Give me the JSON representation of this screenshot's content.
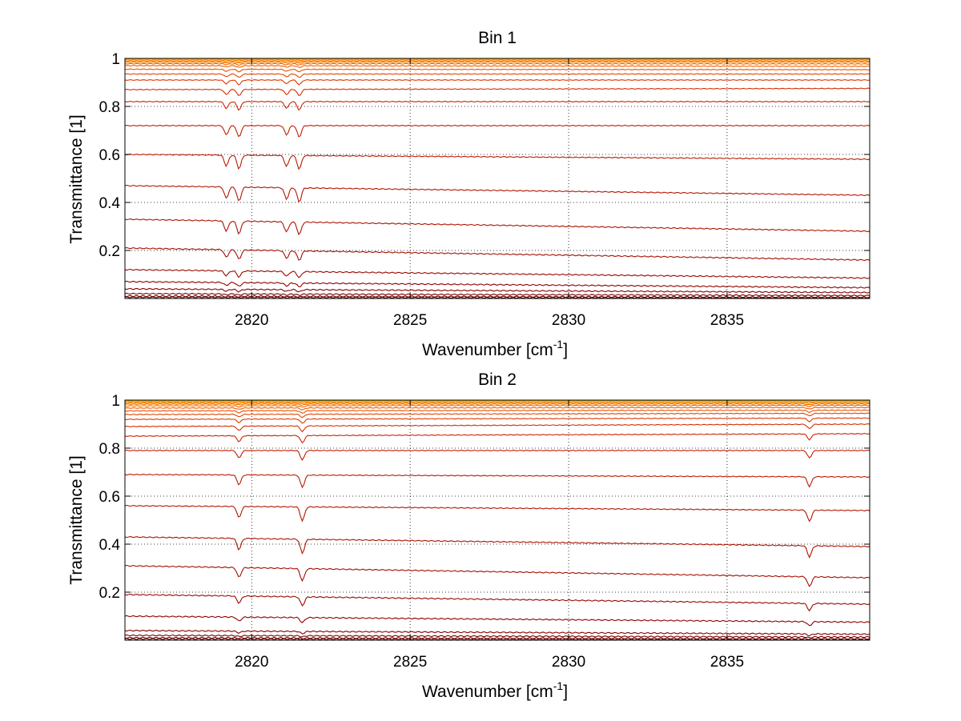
{
  "chart_data": [
    {
      "type": "line",
      "title": "Bin 1",
      "xlabel": "Wavenumber [cm",
      "xlabel_sup": "-1",
      "xlabel_end": "]",
      "ylabel": "Transmittance [1]",
      "xlim": [
        2816,
        2839.5
      ],
      "ylim": [
        0,
        1
      ],
      "x_ticks": [
        2820,
        2825,
        2830,
        2835
      ],
      "y_ticks": [
        0.2,
        0.4,
        0.6,
        0.8,
        1
      ],
      "x_tick_labels": [
        "2820",
        "2825",
        "2830",
        "2835"
      ],
      "y_tick_labels": [
        "0.2",
        "0.4",
        "0.6",
        "0.8",
        "1"
      ],
      "grid": true,
      "absorption_lines_x": [
        2819.2,
        2819.6,
        2821.1,
        2821.5
      ],
      "series_baseline_start": [
        0.005,
        0.01,
        0.02,
        0.04,
        0.07,
        0.12,
        0.21,
        0.33,
        0.47,
        0.6,
        0.72,
        0.82,
        0.87,
        0.91,
        0.935,
        0.955,
        0.97,
        0.978,
        0.984,
        0.989,
        0.993,
        0.996,
        0.998,
        1.0
      ],
      "series_baseline_end": [
        0.002,
        0.005,
        0.012,
        0.025,
        0.045,
        0.085,
        0.16,
        0.28,
        0.43,
        0.58,
        0.72,
        0.82,
        0.875,
        0.91,
        0.935,
        0.953,
        0.967,
        0.977,
        0.984,
        0.989,
        0.993,
        0.996,
        0.998,
        1.0
      ],
      "series_colors": [
        "#5a0000",
        "#6b0000",
        "#7a0000",
        "#850000",
        "#900000",
        "#9a0800",
        "#a40e00",
        "#ac1200",
        "#b41600",
        "#bc1a00",
        "#c41e00",
        "#cc2400",
        "#d42e00",
        "#dc3800",
        "#e24400",
        "#e85000",
        "#ec5c00",
        "#f06800",
        "#f47400",
        "#f78000",
        "#fa8c00",
        "#fc9800",
        "#fea400",
        "#ffb000"
      ]
    },
    {
      "type": "line",
      "title": "Bin 2",
      "xlabel": "Wavenumber [cm",
      "xlabel_sup": "-1",
      "xlabel_end": "]",
      "ylabel": "Transmittance [1]",
      "xlim": [
        2816,
        2839.5
      ],
      "ylim": [
        0,
        1
      ],
      "x_ticks": [
        2820,
        2825,
        2830,
        2835
      ],
      "y_ticks": [
        0.2,
        0.4,
        0.6,
        0.8,
        1
      ],
      "x_tick_labels": [
        "2820",
        "2825",
        "2830",
        "2835"
      ],
      "y_tick_labels": [
        "0.2",
        "0.4",
        "0.6",
        "0.8",
        "1"
      ],
      "grid": true,
      "absorption_lines_x": [
        2819.6,
        2821.6,
        2837.6
      ],
      "series_baseline_start": [
        0.005,
        0.01,
        0.02,
        0.04,
        0.1,
        0.19,
        0.31,
        0.43,
        0.56,
        0.69,
        0.79,
        0.85,
        0.89,
        0.92,
        0.94,
        0.955,
        0.967,
        0.976,
        0.983,
        0.988,
        0.992,
        0.995,
        0.997,
        0.999,
        1.0
      ],
      "series_baseline_end": [
        0.002,
        0.006,
        0.013,
        0.025,
        0.075,
        0.15,
        0.26,
        0.39,
        0.54,
        0.68,
        0.79,
        0.86,
        0.9,
        0.925,
        0.945,
        0.958,
        0.969,
        0.978,
        0.984,
        0.989,
        0.993,
        0.996,
        0.998,
        0.999,
        1.0
      ],
      "series_colors": [
        "#5a0000",
        "#6b0000",
        "#7a0000",
        "#850000",
        "#900000",
        "#9a0800",
        "#a40e00",
        "#ac1200",
        "#b41600",
        "#bc1a00",
        "#c41e00",
        "#cc2400",
        "#d42e00",
        "#dc3800",
        "#e24400",
        "#e85000",
        "#ec5c00",
        "#f06800",
        "#f47400",
        "#f78000",
        "#fa8c00",
        "#fc9800",
        "#fea400",
        "#ffb000",
        "#33bb88"
      ]
    }
  ]
}
